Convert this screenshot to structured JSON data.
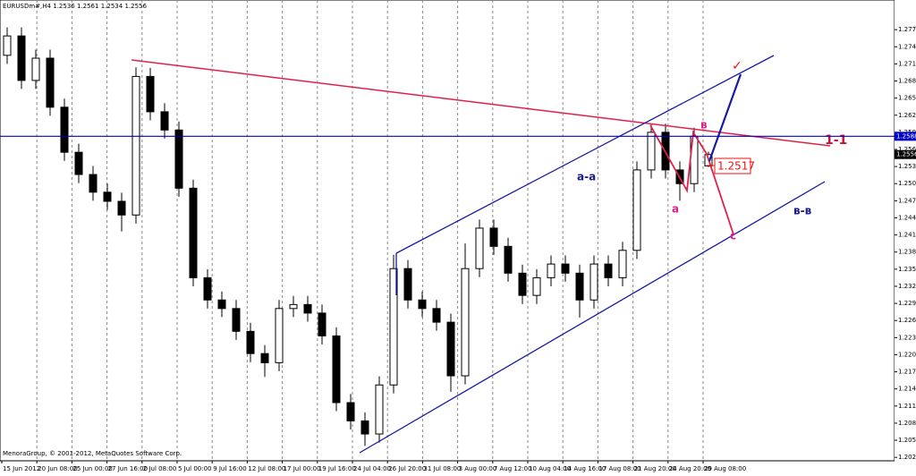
{
  "chart_data": {
    "type": "candlestick",
    "symbol": "EURUSDm#,H4",
    "copyright": "MenoraGroup, © 2001-2012, MetaQuotes Software Corp.",
    "time_labels": [
      "15 Jun 2012",
      "20 Jun 08:00",
      "25 Jun 00:00",
      "27 Jun 16:00",
      "2 Jul 08:00",
      "5 Jul 00:00",
      "9 Jul 16:00",
      "12 Jul 08:00",
      "17 Jul 00:00",
      "19 Jul 16:00",
      "24 Jul 04:00",
      "26 Jul 20:00",
      "31 Jul 08:00",
      "3 Aug 00:00",
      "7 Aug 12:00",
      "10 Aug 04:00",
      "14 Aug 16:00",
      "17 Aug 08:00",
      "21 Aug 20:00",
      "24 Aug 20:00",
      "29 Aug 08:00"
    ],
    "open": [
      1.273,
      1.2764,
      1.2686,
      1.2725,
      1.2639,
      1.256,
      1.2521,
      1.249,
      1.2474,
      1.245,
      1.2693,
      1.2631,
      1.2599,
      1.2497,
      1.234,
      1.2301,
      1.2286,
      1.2246,
      1.2207,
      1.2191,
      1.2286,
      1.2293,
      1.2278,
      1.2238,
      1.2121,
      1.2089,
      1.2066,
      1.2152,
      1.2356,
      1.2301,
      1.2286,
      1.2262,
      1.2168,
      1.2356,
      1.2427,
      1.2395,
      1.2348,
      1.2309,
      1.234,
      1.2364,
      1.2348,
      1.2301,
      1.2364,
      1.234,
      1.2388,
      1.2529,
      1.2595,
      1.2529,
      1.2505,
      1.2536
    ],
    "high": [
      1.2779,
      1.2779,
      1.274,
      1.274,
      1.2654,
      1.2575,
      1.2536,
      1.2505,
      1.2489,
      1.2709,
      1.2708,
      1.2646,
      1.2614,
      1.2512,
      1.2355,
      1.2316,
      1.2301,
      1.2261,
      1.2222,
      1.2301,
      1.2308,
      1.2308,
      1.2293,
      1.2253,
      1.2136,
      1.2104,
      1.2167,
      1.238,
      1.2371,
      1.2316,
      1.2301,
      1.2277,
      1.24,
      1.2442,
      1.2442,
      1.241,
      1.2363,
      1.2355,
      1.2379,
      1.2379,
      1.2363,
      1.2379,
      1.2379,
      1.2403,
      1.2544,
      1.261,
      1.261,
      1.2544,
      1.2603,
      1.2561
    ],
    "low": [
      1.2715,
      1.2671,
      1.2671,
      1.2624,
      1.2545,
      1.2506,
      1.2475,
      1.2459,
      1.2421,
      1.2435,
      1.2616,
      1.2584,
      1.2482,
      1.2325,
      1.2286,
      1.2271,
      1.2231,
      1.2192,
      1.2166,
      1.2176,
      1.2271,
      1.2263,
      1.2223,
      1.2106,
      1.2074,
      1.2045,
      1.2051,
      1.2137,
      1.2286,
      1.2271,
      1.2247,
      1.214,
      1.2153,
      1.2341,
      1.238,
      1.2333,
      1.2294,
      1.2294,
      1.2325,
      1.2333,
      1.227,
      1.2286,
      1.2325,
      1.2325,
      1.2373,
      1.2514,
      1.2514,
      1.2475,
      1.249,
      1.2534
    ],
    "close": [
      1.2764,
      1.2686,
      1.2725,
      1.2639,
      1.256,
      1.2521,
      1.249,
      1.2474,
      1.245,
      1.2693,
      1.2631,
      1.2599,
      1.2497,
      1.234,
      1.2301,
      1.2286,
      1.2246,
      1.2207,
      1.2191,
      1.2286,
      1.2293,
      1.2278,
      1.2238,
      1.2121,
      1.2089,
      1.2066,
      1.2152,
      1.2356,
      1.2301,
      1.2286,
      1.2262,
      1.2168,
      1.2356,
      1.2427,
      1.2395,
      1.2348,
      1.2309,
      1.234,
      1.2364,
      1.2348,
      1.2301,
      1.2364,
      1.234,
      1.2388,
      1.2529,
      1.2595,
      1.2529,
      1.2505,
      1.2588,
      1.2556
    ],
    "up_color": "#ffffff",
    "down_color": "#000000",
    "ylim": [
      1.2019,
      1.2827
    ],
    "yticks": [
      1.2775,
      1.2745,
      1.2715,
      1.2685,
      1.2655,
      1.2625,
      1.2595,
      1.2565,
      1.2535,
      1.2505,
      1.2475,
      1.2445,
      1.2415,
      1.2385,
      1.2355,
      1.2325,
      1.2295,
      1.2265,
      1.2235,
      1.2205,
      1.2175,
      1.2145,
      1.2115,
      1.2085,
      1.2055,
      1.2025
    ],
    "hline": {
      "value": 1.2588,
      "color": "#0000cc"
    },
    "grid": "vertical",
    "annotations": [
      {
        "text": "a-a",
        "color": "#1a1a8c"
      },
      {
        "text": "в-в",
        "color": "#1a1a8c"
      },
      {
        "text": "1-1",
        "color": "#cc1133"
      },
      {
        "text": "a",
        "color": "#e0218a"
      },
      {
        "text": "в",
        "color": "#e0218a"
      },
      {
        "text": "c",
        "color": "#e0218a"
      },
      {
        "text": "1.2517",
        "color": "#ee1111"
      },
      {
        "text": "✓",
        "color": "#ee1111"
      }
    ]
  }
}
